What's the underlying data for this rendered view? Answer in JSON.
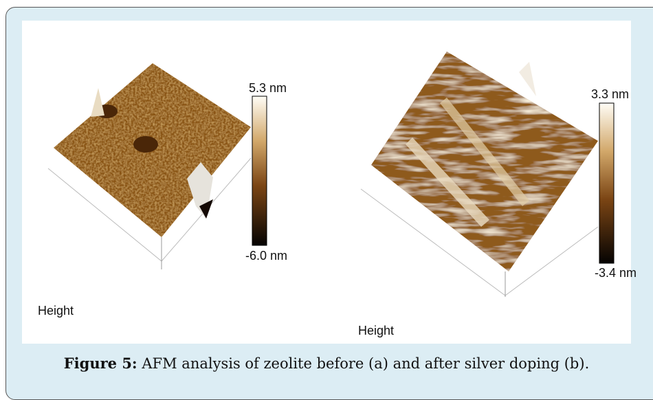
{
  "panels": [
    {
      "max_label": "5.3 nm",
      "min_label": "-6.0 nm",
      "label": "Height"
    },
    {
      "max_label": "3.3 nm",
      "min_label": "-3.4 nm",
      "label": "Height"
    }
  ],
  "caption": {
    "label": "Figure 5:",
    "text": "AFM analysis of zeolite before (a) and after silver doping (b)."
  }
}
